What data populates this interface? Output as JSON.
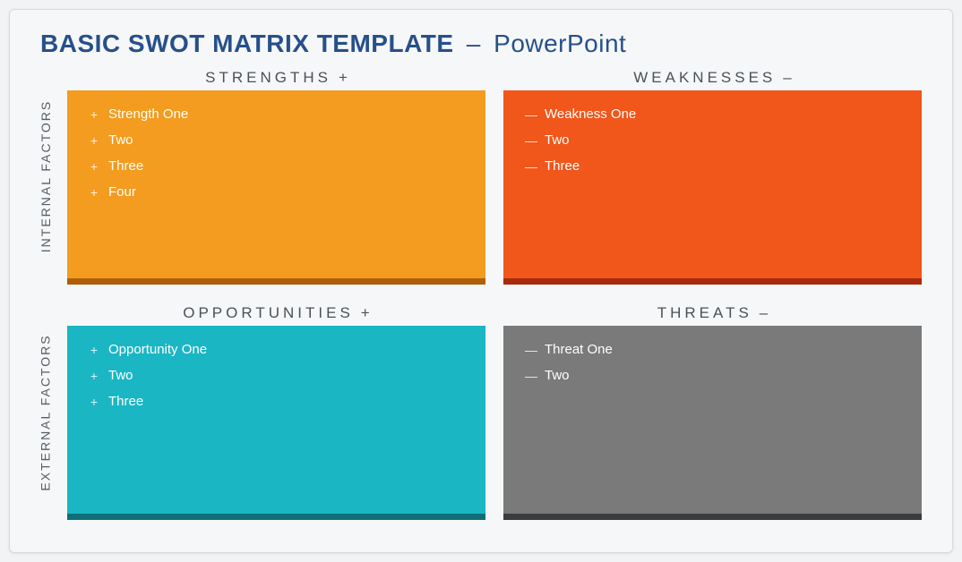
{
  "title": {
    "main": "BASIC SWOT MATRIX TEMPLATE",
    "separator": "–",
    "sub": "PowerPoint",
    "color": "#26508a"
  },
  "axis": {
    "internal": "INTERNAL FACTORS",
    "external": "EXTERNAL FACTORS"
  },
  "quadrants": [
    {
      "key": "strengths",
      "header": "STRENGTHS",
      "sign": "+",
      "bullet": "+",
      "bg": "#f39c1f",
      "underline": "#b05e0a",
      "items": [
        "Strength One",
        "Two",
        "Three",
        "Four"
      ]
    },
    {
      "key": "weaknesses",
      "header": "WEAKNESSES",
      "sign": "–",
      "bullet": "—",
      "bg": "#f1561a",
      "underline": "#a82a0e",
      "items": [
        "Weakness One",
        "Two",
        "Three"
      ]
    },
    {
      "key": "opportunities",
      "header": "OPPORTUNITIES",
      "sign": "+",
      "bullet": "+",
      "bg": "#1ab6c4",
      "underline": "#0f6f78",
      "items": [
        "Opportunity One",
        "Two",
        "Three"
      ]
    },
    {
      "key": "threats",
      "header": "THREATS",
      "sign": "–",
      "bullet": "—",
      "bg": "#7a7a7a",
      "underline": "#3c3c3c",
      "items": [
        "Threat One",
        "Two"
      ]
    }
  ]
}
